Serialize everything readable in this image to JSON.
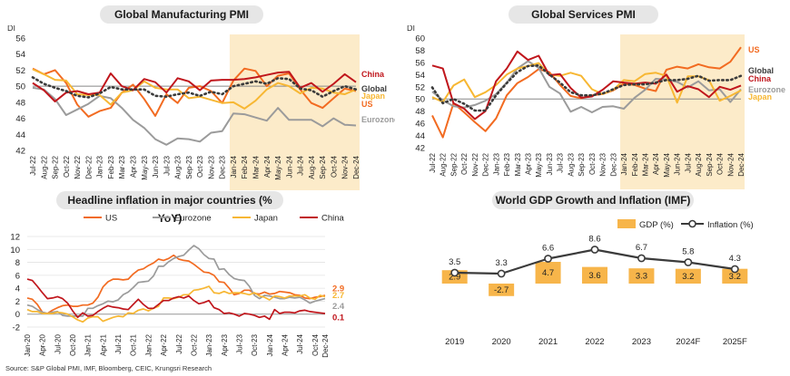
{
  "colors": {
    "US": "#f26b21",
    "Eurozone": "#9b9b9b",
    "Japan": "#f7b733",
    "China": "#c0161c",
    "Global": "#3b3b3b",
    "shade": "#fcebc9",
    "grid": "#e3e3e3",
    "gdp_bar": "#f7b54a"
  },
  "source": "Source: S&P Global PMI, IMF, Bloomberg, CEIC, Krungsri Research",
  "chart_data": [
    {
      "id": "mfg",
      "type": "line",
      "title": "Global Manufacturing PMI",
      "ylabel": "DI",
      "ylim": [
        42,
        56
      ],
      "yticks": [
        42,
        44,
        46,
        48,
        50,
        52,
        54,
        56
      ],
      "x": [
        "Jul-22",
        "Aug-22",
        "Sep-22",
        "Oct-22",
        "Nov-22",
        "Dec-22",
        "Jan-23",
        "Feb-23",
        "Mar-23",
        "Apr-23",
        "May-23",
        "Jun-23",
        "Jul-23",
        "Aug-23",
        "Sep-23",
        "Oct-23",
        "Nov-23",
        "Dec-23",
        "Jan-24",
        "Feb-24",
        "Mar-24",
        "Apr-24",
        "May-24",
        "Jun-24",
        "Jul-24",
        "Aug-24",
        "Sep-24",
        "Oct-24",
        "Nov-24",
        "Dec-24"
      ],
      "shade_from": "Jan-24",
      "shade_to": "Dec-24",
      "series": [
        {
          "name": "US",
          "color": "US",
          "values": [
            52.2,
            51.5,
            52.0,
            50.4,
            47.7,
            46.2,
            46.9,
            47.3,
            49.2,
            50.2,
            48.4,
            46.3,
            49.0,
            47.9,
            49.8,
            50.0,
            49.4,
            47.9,
            50.7,
            52.2,
            51.9,
            50.0,
            51.3,
            51.6,
            49.6,
            47.9,
            47.3,
            48.5,
            49.7,
            49.4
          ]
        },
        {
          "name": "Eurozone",
          "color": "Eurozone",
          "values": [
            49.8,
            49.6,
            48.4,
            46.4,
            47.1,
            47.8,
            48.8,
            48.5,
            47.3,
            45.8,
            44.8,
            43.4,
            42.7,
            43.5,
            43.4,
            43.1,
            44.2,
            44.4,
            46.6,
            46.5,
            46.1,
            45.7,
            47.3,
            45.8,
            45.8,
            45.8,
            45.0,
            46.0,
            45.2,
            45.1
          ]
        },
        {
          "name": "Japan",
          "color": "Japan",
          "values": [
            52.1,
            51.5,
            50.8,
            50.7,
            49.0,
            48.9,
            48.9,
            47.7,
            49.2,
            49.5,
            50.6,
            49.8,
            49.6,
            49.6,
            48.5,
            48.7,
            48.3,
            47.9,
            48.0,
            47.2,
            48.2,
            49.6,
            50.4,
            50.0,
            49.1,
            49.8,
            49.7,
            49.2,
            49.0,
            49.6
          ]
        },
        {
          "name": "China",
          "color": "China",
          "values": [
            50.4,
            49.5,
            48.1,
            49.2,
            49.4,
            49.0,
            49.2,
            51.6,
            50.0,
            49.5,
            50.9,
            50.5,
            49.2,
            51.0,
            50.6,
            49.5,
            50.7,
            50.8,
            50.8,
            50.9,
            51.1,
            51.4,
            51.7,
            51.8,
            49.8,
            50.4,
            49.3,
            50.3,
            51.5,
            50.5
          ]
        },
        {
          "name": "Global",
          "color": "Global",
          "dash": true,
          "values": [
            51.1,
            50.3,
            49.8,
            49.4,
            48.8,
            48.6,
            49.1,
            49.9,
            49.6,
            49.6,
            49.6,
            48.8,
            48.7,
            49.0,
            49.2,
            48.8,
            49.3,
            49.0,
            50.0,
            50.3,
            50.6,
            50.3,
            51.0,
            50.9,
            49.7,
            49.5,
            48.7,
            49.4,
            50.0,
            49.6
          ]
        }
      ],
      "legend_labels": [
        {
          "text": "China",
          "color": "China"
        },
        {
          "text": "Global",
          "color": "Global"
        },
        {
          "text": "Japan",
          "color": "Japan"
        },
        {
          "text": "US",
          "color": "US"
        },
        {
          "text": "Eurozone",
          "color": "Eurozone"
        }
      ]
    },
    {
      "id": "svc",
      "type": "line",
      "title": "Global Services PMI",
      "ylabel": "DI",
      "ylim": [
        42,
        60
      ],
      "yticks": [
        42,
        44,
        46,
        48,
        50,
        52,
        54,
        56,
        58,
        60
      ],
      "x": [
        "Jul-22",
        "Aug-22",
        "Sep-22",
        "Oct-22",
        "Nov-22",
        "Dec-22",
        "Jan-23",
        "Feb-23",
        "Mar-23",
        "Apr-23",
        "May-23",
        "Jun-23",
        "Jul-23",
        "Aug-23",
        "Sep-23",
        "Oct-23",
        "Nov-23",
        "Dec-23",
        "Jan-24",
        "Feb-24",
        "Mar-24",
        "Apr-24",
        "May-24",
        "Jun-24",
        "Jul-24",
        "Aug-24",
        "Sep-24",
        "Oct-24",
        "Nov-24",
        "Dec-24"
      ],
      "shade_from": "Jan-24",
      "shade_to": "Dec-24",
      "series": [
        {
          "name": "US",
          "color": "US",
          "values": [
            47.3,
            43.7,
            49.3,
            47.8,
            46.2,
            44.7,
            46.8,
            50.6,
            52.6,
            53.6,
            54.9,
            54.4,
            52.3,
            50.5,
            50.1,
            50.6,
            50.8,
            51.4,
            52.5,
            52.3,
            51.7,
            51.3,
            54.8,
            55.3,
            55.0,
            55.7,
            55.2,
            55.0,
            56.1,
            58.5
          ]
        },
        {
          "name": "Eurozone",
          "color": "Eurozone",
          "values": [
            51.2,
            49.8,
            48.8,
            48.6,
            49.0,
            49.7,
            50.8,
            52.7,
            55.0,
            56.2,
            55.1,
            52.0,
            50.9,
            47.9,
            48.7,
            47.8,
            48.7,
            48.8,
            48.4,
            50.2,
            51.5,
            53.3,
            53.2,
            52.8,
            51.9,
            52.9,
            51.4,
            51.6,
            49.5,
            51.6
          ]
        },
        {
          "name": "Japan",
          "color": "Japan",
          "values": [
            50.3,
            49.5,
            52.2,
            53.2,
            50.3,
            51.1,
            52.3,
            54.0,
            55.0,
            55.4,
            55.9,
            54.0,
            53.8,
            54.3,
            53.8,
            51.6,
            50.8,
            51.5,
            53.1,
            52.9,
            54.1,
            54.3,
            53.8,
            49.4,
            53.7,
            53.7,
            53.1,
            49.7,
            50.5,
            51.4
          ]
        },
        {
          "name": "China",
          "color": "China",
          "values": [
            55.5,
            55.0,
            49.3,
            48.4,
            46.7,
            48.0,
            52.9,
            55.0,
            57.8,
            56.4,
            57.1,
            53.9,
            54.1,
            51.8,
            50.2,
            50.4,
            51.5,
            52.9,
            52.7,
            52.5,
            52.7,
            52.5,
            54.0,
            51.2,
            52.1,
            51.6,
            50.3,
            52.0,
            51.5,
            52.2
          ]
        },
        {
          "name": "Global",
          "color": "Global",
          "dash": true,
          "values": [
            51.9,
            49.3,
            50.0,
            49.2,
            48.1,
            48.1,
            50.6,
            52.6,
            54.4,
            55.4,
            55.5,
            54.0,
            52.7,
            51.1,
            50.6,
            50.6,
            50.9,
            51.6,
            52.3,
            52.4,
            52.4,
            52.7,
            53.1,
            53.1,
            53.3,
            53.8,
            53.0,
            53.1,
            53.1,
            53.8
          ]
        }
      ],
      "legend_labels": [
        {
          "text": "US",
          "color": "US"
        },
        {
          "text": "Global",
          "color": "Global"
        },
        {
          "text": "China",
          "color": "China"
        },
        {
          "text": "Eurozone",
          "color": "Eurozone"
        },
        {
          "text": "Japan",
          "color": "Japan"
        }
      ]
    },
    {
      "id": "infl",
      "type": "line",
      "title": "Headline inflation in major countries (% YoY)",
      "ylim": [
        -2,
        12
      ],
      "yticks": [
        -2,
        0,
        2,
        4,
        6,
        8,
        10,
        12
      ],
      "x_ticks": [
        "Jan-20",
        "Apr-20",
        "Jul-20",
        "Oct-20",
        "Jan-21",
        "Apr-21",
        "Jul-21",
        "Oct-21",
        "Jan-22",
        "Apr-22",
        "Jul-22",
        "Oct-22",
        "Jan-23",
        "Apr-23",
        "Jul-23",
        "Oct-23",
        "Jan-24",
        "Apr-24",
        "Jul-24",
        "Oct-24",
        "Dec-24"
      ],
      "n_points": 60,
      "series": [
        {
          "name": "US",
          "color": "US",
          "values": [
            2.5,
            2.3,
            1.5,
            0.3,
            0.1,
            0.6,
            1.0,
            1.3,
            1.4,
            1.2,
            1.2,
            1.4,
            1.4,
            1.7,
            2.6,
            4.2,
            5.0,
            5.4,
            5.4,
            5.3,
            5.4,
            6.2,
            6.8,
            7.0,
            7.5,
            7.9,
            8.5,
            8.3,
            8.6,
            9.1,
            8.5,
            8.3,
            8.2,
            7.7,
            7.1,
            6.5,
            6.4,
            6.0,
            5.0,
            4.9,
            4.0,
            3.0,
            3.2,
            3.7,
            3.7,
            3.2,
            3.1,
            3.4,
            3.1,
            3.2,
            3.5,
            3.4,
            3.3,
            3.0,
            2.9,
            2.5,
            2.4,
            2.6,
            2.7,
            2.9
          ]
        },
        {
          "name": "Eurozone",
          "color": "Eurozone",
          "values": [
            1.4,
            1.2,
            0.7,
            0.3,
            0.1,
            0.3,
            0.4,
            -0.2,
            -0.3,
            -0.3,
            -0.3,
            -0.3,
            0.9,
            0.9,
            1.3,
            1.6,
            2.0,
            1.9,
            2.2,
            3.0,
            3.4,
            4.1,
            4.9,
            5.0,
            5.1,
            5.9,
            7.4,
            7.4,
            8.1,
            8.6,
            8.9,
            9.1,
            9.9,
            10.6,
            10.1,
            9.2,
            8.6,
            8.5,
            6.9,
            7.0,
            6.1,
            5.5,
            5.3,
            5.2,
            4.3,
            2.9,
            2.4,
            2.9,
            2.8,
            2.6,
            2.4,
            2.4,
            2.6,
            2.5,
            2.6,
            2.2,
            1.7,
            2.0,
            2.2,
            2.4
          ]
        },
        {
          "name": "Japan",
          "color": "Japan",
          "values": [
            0.7,
            0.4,
            0.4,
            0.1,
            0.1,
            0.1,
            0.3,
            0.2,
            0.0,
            -0.4,
            -0.9,
            -1.2,
            -0.6,
            -0.4,
            -0.4,
            -1.1,
            -0.8,
            -0.5,
            -0.3,
            -0.4,
            0.2,
            0.1,
            0.6,
            0.8,
            0.5,
            0.9,
            1.2,
            2.5,
            2.5,
            2.4,
            2.6,
            3.0,
            3.0,
            3.7,
            3.8,
            4.0,
            4.3,
            3.3,
            3.2,
            3.5,
            3.2,
            3.3,
            3.3,
            3.2,
            3.0,
            3.3,
            2.8,
            2.6,
            2.2,
            2.8,
            2.7,
            2.5,
            2.8,
            2.8,
            2.8,
            3.0,
            2.5,
            2.3,
            2.9,
            2.7
          ]
        },
        {
          "name": "China",
          "color": "China",
          "values": [
            5.4,
            5.2,
            4.3,
            3.3,
            2.4,
            2.5,
            2.7,
            2.4,
            1.7,
            0.5,
            -0.5,
            0.2,
            -0.3,
            -0.2,
            0.4,
            0.9,
            1.3,
            1.1,
            1.0,
            0.8,
            0.7,
            1.5,
            2.3,
            1.5,
            0.9,
            0.9,
            1.5,
            2.1,
            2.1,
            2.5,
            2.7,
            2.5,
            2.8,
            2.1,
            1.6,
            1.8,
            2.1,
            1.0,
            0.7,
            0.1,
            0.2,
            0.0,
            -0.3,
            0.1,
            0.0,
            -0.2,
            -0.5,
            -0.3,
            -0.8,
            0.7,
            0.1,
            0.3,
            0.3,
            0.2,
            0.5,
            0.6,
            0.4,
            0.3,
            0.2,
            0.1
          ]
        }
      ],
      "legend": [
        "US",
        "Eurozone",
        "Japan",
        "China"
      ],
      "end_labels": [
        {
          "text": "2.9",
          "color": "US",
          "value": 2.9
        },
        {
          "text": "2.7",
          "color": "Japan",
          "value": 2.7
        },
        {
          "text": "2.4",
          "color": "Eurozone",
          "value": 2.4
        },
        {
          "text": "0.1",
          "color": "China",
          "value": 0.1
        }
      ]
    },
    {
      "id": "gdp",
      "type": "bar",
      "title": "World GDP Growth and Inflation (IMF)",
      "categories": [
        "2019",
        "2020",
        "2021",
        "2022",
        "2023",
        "2024F",
        "2025F"
      ],
      "series": [
        {
          "name": "GDP (%)",
          "kind": "bar",
          "values": [
            2.9,
            -2.7,
            4.7,
            3.6,
            3.3,
            3.2,
            3.2
          ]
        },
        {
          "name": "Inflation (%)",
          "kind": "line",
          "values": [
            3.5,
            3.3,
            6.6,
            8.6,
            6.7,
            5.8,
            4.3
          ]
        }
      ],
      "bar_labels": [
        "2.9",
        "-2.7",
        "4.7",
        "3.6",
        "3.3",
        "3.2",
        "3.2"
      ],
      "line_labels": [
        "3.5",
        "3.3",
        "6.6",
        "8.6",
        "6.7",
        "5.8",
        "4.3"
      ]
    }
  ]
}
